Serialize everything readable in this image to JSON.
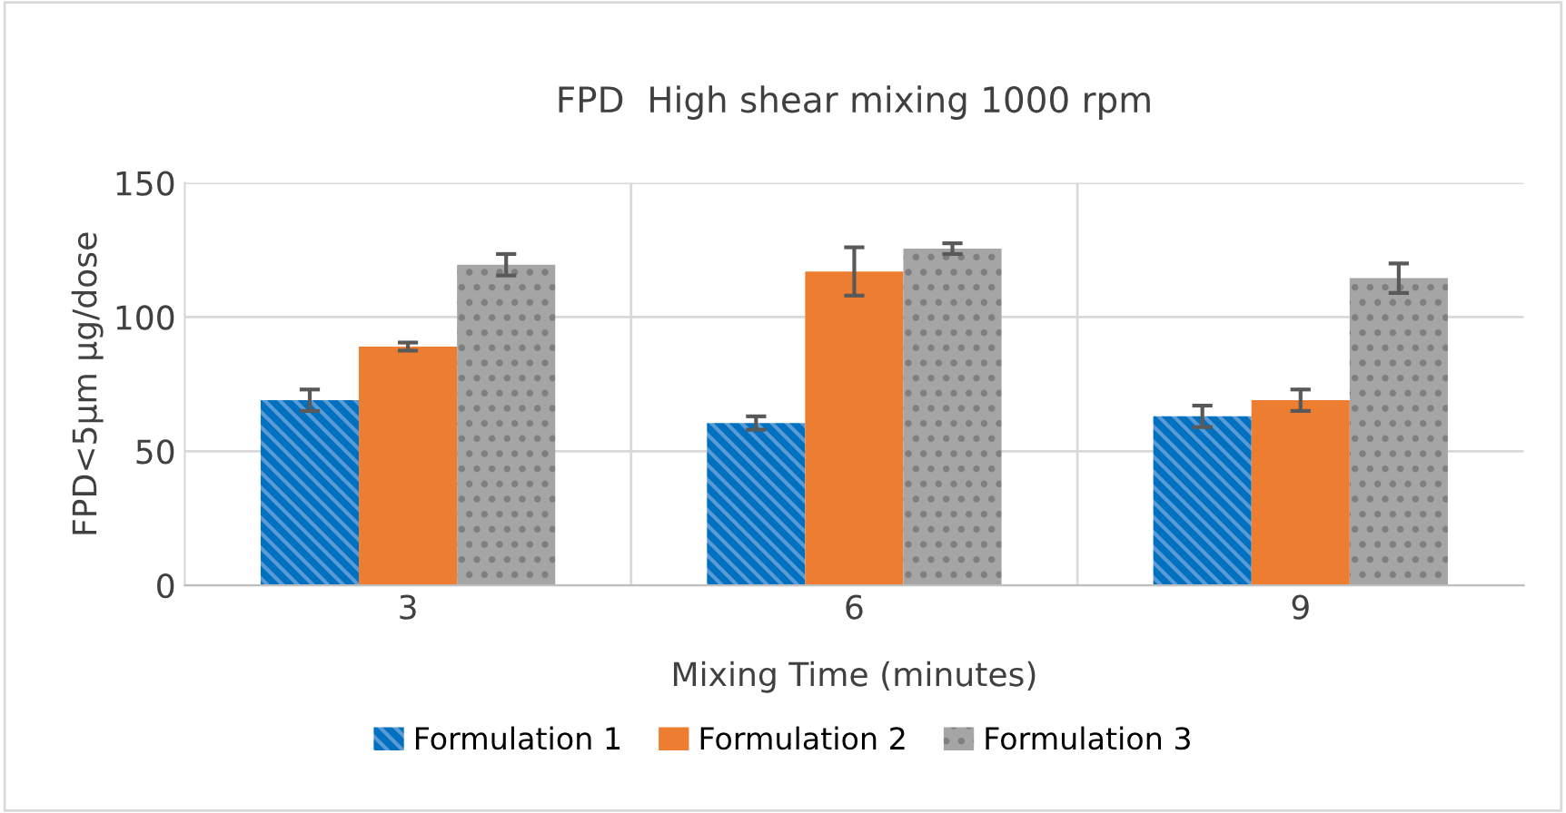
{
  "chart_data": {
    "type": "bar",
    "title": "FPD  High shear mixing 1000 rpm",
    "xlabel": "Mixing Time (minutes)",
    "ylabel": "FPD<5µm µg/dose",
    "categories": [
      "3",
      "6",
      "9"
    ],
    "series": [
      {
        "name": "Formulation 1",
        "color": "#0070c0",
        "values": [
          69,
          60.5,
          63
        ],
        "errors": [
          4,
          2.5,
          4
        ]
      },
      {
        "name": "Formulation 2",
        "color": "#ed7d31",
        "values": [
          89,
          117,
          69
        ],
        "errors": [
          1.5,
          9,
          4
        ]
      },
      {
        "name": "Formulation 3",
        "color": "#a5a5a5",
        "values": [
          119.5,
          125.5,
          114.5
        ],
        "errors": [
          4,
          2,
          5.5
        ]
      }
    ],
    "ylim": [
      0,
      150
    ],
    "yticks": [
      0,
      50,
      100,
      150
    ],
    "grid": true,
    "legend": "bottom"
  }
}
